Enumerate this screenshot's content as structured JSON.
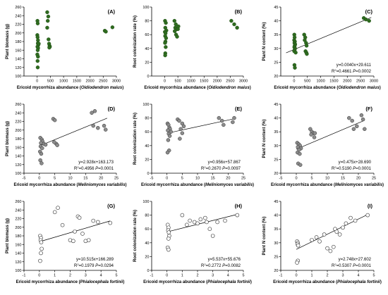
{
  "chart_data": [
    {
      "id": "A",
      "type": "scatter",
      "label": "(A)",
      "ylabel": "Plant biomass (g)",
      "xlabel_prefix": "Ericoid mycorrhiza abundance (",
      "xlabel_species": "Oidiodendron maius",
      "xlabel_suffix": ")",
      "xlim": [
        -500,
        3000
      ],
      "ylim": [
        100,
        260
      ],
      "xticks": [
        0,
        500,
        1000,
        1500,
        2000,
        2500,
        3000
      ],
      "yticks": [
        100,
        120,
        140,
        160,
        180,
        200,
        220,
        240,
        260
      ],
      "marker": "filled",
      "color": "#2e6b1f",
      "points": [
        [
          10,
          228
        ],
        [
          20,
          222
        ],
        [
          5,
          195
        ],
        [
          15,
          190
        ],
        [
          30,
          183
        ],
        [
          25,
          176
        ],
        [
          40,
          172
        ],
        [
          10,
          168
        ],
        [
          35,
          165
        ],
        [
          20,
          160
        ],
        [
          5,
          150
        ],
        [
          30,
          145
        ],
        [
          15,
          135
        ],
        [
          20,
          120
        ],
        [
          60,
          175
        ],
        [
          380,
          248
        ],
        [
          420,
          238
        ],
        [
          400,
          228
        ],
        [
          380,
          212
        ],
        [
          430,
          185
        ],
        [
          450,
          175
        ],
        [
          470,
          170
        ],
        [
          480,
          168
        ],
        [
          460,
          166
        ],
        [
          2560,
          205
        ],
        [
          2600,
          203
        ],
        [
          2850,
          213
        ]
      ],
      "fit": null,
      "equation": "",
      "r2": "",
      "pvalue": ""
    },
    {
      "id": "B",
      "type": "scatter",
      "label": "(B)",
      "ylabel": "Root colonization rate (%)",
      "xlabel_prefix": "Ericoid mycorrhiza abundance (",
      "xlabel_species": "Oidiodendron maius",
      "xlabel_suffix": ")",
      "xlim": [
        -500,
        3000
      ],
      "ylim": [
        0,
        100
      ],
      "xticks": [
        0,
        500,
        1000,
        1500,
        2000,
        2500,
        3000
      ],
      "yticks": [
        0,
        20,
        40,
        60,
        80,
        100
      ],
      "marker": "filled",
      "color": "#2e6b1f",
      "points": [
        [
          10,
          80
        ],
        [
          40,
          77
        ],
        [
          20,
          70
        ],
        [
          60,
          66
        ],
        [
          5,
          64
        ],
        [
          30,
          62
        ],
        [
          15,
          58
        ],
        [
          50,
          55
        ],
        [
          25,
          50
        ],
        [
          10,
          48
        ],
        [
          35,
          42
        ],
        [
          20,
          33
        ],
        [
          15,
          30
        ],
        [
          370,
          80
        ],
        [
          420,
          75
        ],
        [
          400,
          70
        ],
        [
          450,
          68
        ],
        [
          380,
          65
        ],
        [
          430,
          60
        ],
        [
          470,
          57
        ],
        [
          500,
          68
        ],
        [
          520,
          72
        ],
        [
          2540,
          80
        ],
        [
          2650,
          75
        ],
        [
          2760,
          70
        ]
      ],
      "fit": null,
      "equation": "",
      "r2": "",
      "pvalue": ""
    },
    {
      "id": "C",
      "type": "scatter",
      "label": "(C)",
      "ylabel": "Plant N content (%)",
      "xlabel_prefix": "Ericoid mycorrhiza abundance (",
      "xlabel_species": "Oidiodendron maius",
      "xlabel_suffix": ")",
      "xlim": [
        -500,
        3000
      ],
      "ylim": [
        20,
        45
      ],
      "xticks": [
        0,
        500,
        1000,
        1500,
        2000,
        2500,
        3000
      ],
      "yticks": [
        20,
        25,
        30,
        35,
        40,
        45
      ],
      "marker": "filled",
      "color": "#2e6b1f",
      "points": [
        [
          10,
          35
        ],
        [
          20,
          34
        ],
        [
          5,
          33
        ],
        [
          30,
          32.5
        ],
        [
          15,
          32
        ],
        [
          40,
          31.5
        ],
        [
          25,
          31
        ],
        [
          10,
          30.5
        ],
        [
          35,
          30
        ],
        [
          20,
          29.5
        ],
        [
          5,
          29
        ],
        [
          60,
          28.5
        ],
        [
          15,
          24
        ],
        [
          30,
          23
        ],
        [
          380,
          35
        ],
        [
          420,
          34
        ],
        [
          400,
          33
        ],
        [
          450,
          32
        ],
        [
          470,
          31
        ],
        [
          430,
          29
        ],
        [
          460,
          28.5
        ],
        [
          480,
          28
        ],
        [
          2620,
          41
        ],
        [
          2700,
          40.5
        ],
        [
          2820,
          40
        ]
      ],
      "fit": {
        "slope": 0.004,
        "intercept": 29.611,
        "x": [
          -300,
          2900
        ]
      },
      "equation": "y=0.0040x+29.611",
      "r2": "0.4661",
      "pvalue": "0.0002"
    },
    {
      "id": "D",
      "type": "scatter",
      "label": "(D)",
      "ylabel": "Plant biomass (g)",
      "xlabel_prefix": "Ericoid mycorrhiza abundance (",
      "xlabel_species": "Meliniomyces variabilis",
      "xlabel_suffix": ")",
      "xlim": [
        -5,
        25
      ],
      "ylim": [
        100,
        260
      ],
      "xticks": [
        -5,
        0,
        5,
        10,
        15,
        20,
        25
      ],
      "yticks": [
        100,
        120,
        140,
        160,
        180,
        200,
        220,
        240,
        260
      ],
      "marker": "gray",
      "color": "#8c8c8c",
      "points": [
        [
          0.3,
          182
        ],
        [
          0.8,
          178
        ],
        [
          1.0,
          174
        ],
        [
          0.5,
          170
        ],
        [
          1.5,
          168
        ],
        [
          2.0,
          166
        ],
        [
          0.4,
          162
        ],
        [
          0.9,
          158
        ],
        [
          0.2,
          150
        ],
        [
          0.6,
          145
        ],
        [
          0.3,
          130
        ],
        [
          0.7,
          123
        ],
        [
          4.5,
          226
        ],
        [
          5.0,
          223
        ],
        [
          5.5,
          168
        ],
        [
          5.8,
          165
        ],
        [
          4.8,
          172
        ],
        [
          17.0,
          240
        ],
        [
          18.0,
          244
        ],
        [
          17.5,
          210
        ],
        [
          19.0,
          205
        ],
        [
          21.0,
          210
        ],
        [
          21.5,
          201
        ]
      ],
      "fit": {
        "slope": 2.928,
        "intercept": 163.173,
        "x": [
          0,
          22
        ]
      },
      "equation": "y=2.928x+163.173",
      "r2": "0.4956",
      "pvalue": "0.0001"
    },
    {
      "id": "E",
      "type": "scatter",
      "label": "(E)",
      "ylabel": "Root colonization rate (%)",
      "xlabel_prefix": "Ericoid mycorrhiza abundance (",
      "xlabel_species": "Meliniomyces variabilis",
      "xlabel_suffix": ")",
      "xlim": [
        -5,
        25
      ],
      "ylim": [
        0,
        100
      ],
      "xticks": [
        -5,
        0,
        5,
        10,
        15,
        20,
        25
      ],
      "yticks": [
        0,
        20,
        40,
        60,
        80,
        100
      ],
      "marker": "gray",
      "color": "#8c8c8c",
      "points": [
        [
          0.2,
          72
        ],
        [
          0.5,
          70
        ],
        [
          0.8,
          66
        ],
        [
          1.0,
          64
        ],
        [
          0.3,
          62
        ],
        [
          1.3,
          60
        ],
        [
          0.6,
          57
        ],
        [
          0.9,
          54
        ],
        [
          0.4,
          48
        ],
        [
          0.7,
          33
        ],
        [
          0.2,
          30
        ],
        [
          3.5,
          78
        ],
        [
          4.0,
          76
        ],
        [
          5.0,
          72
        ],
        [
          5.5,
          68
        ],
        [
          4.5,
          64
        ],
        [
          5.0,
          58
        ],
        [
          4.2,
          50
        ],
        [
          17.0,
          80
        ],
        [
          18.0,
          76
        ],
        [
          18.5,
          70
        ],
        [
          21.5,
          74
        ],
        [
          22.0,
          80
        ]
      ],
      "fit": {
        "slope": 0.956,
        "intercept": 57.867,
        "x": [
          0,
          22
        ]
      },
      "equation": "y=0.956x+57.867",
      "r2": "0.2670",
      "pvalue": "0.0097"
    },
    {
      "id": "F",
      "type": "scatter",
      "label": "(F)",
      "ylabel": "Plant N content (%)",
      "xlabel_prefix": "Ericoid mycorrhiza abundance (",
      "xlabel_species": "Meliniomyces variabilis",
      "xlabel_suffix": ")",
      "xlim": [
        -5,
        25
      ],
      "ylim": [
        20,
        45
      ],
      "xticks": [
        -5,
        0,
        5,
        10,
        15,
        20,
        25
      ],
      "yticks": [
        20,
        25,
        30,
        35,
        40,
        45
      ],
      "marker": "gray",
      "color": "#8c8c8c",
      "points": [
        [
          0.3,
          31
        ],
        [
          0.8,
          30.5
        ],
        [
          1.2,
          30
        ],
        [
          0.5,
          29.5
        ],
        [
          1.5,
          29
        ],
        [
          0.9,
          28.5
        ],
        [
          0.4,
          27.5
        ],
        [
          1.1,
          27
        ],
        [
          0.6,
          23.5
        ],
        [
          1.3,
          23
        ],
        [
          4.5,
          36
        ],
        [
          5.0,
          35
        ],
        [
          5.5,
          34.5
        ],
        [
          4.8,
          34
        ],
        [
          5.8,
          33
        ],
        [
          6.0,
          34.5
        ],
        [
          17.0,
          40
        ],
        [
          18.0,
          39
        ],
        [
          18.5,
          36
        ],
        [
          19.5,
          37
        ],
        [
          21.0,
          41
        ],
        [
          21.5,
          39.5
        ],
        [
          22.0,
          36
        ]
      ],
      "fit": {
        "slope": 0.475,
        "intercept": 28.69,
        "x": [
          0,
          22
        ]
      },
      "equation": "y=0.475x+28.690",
      "r2": "0.5190",
      "pvalue": "0.0001"
    },
    {
      "id": "G",
      "type": "scatter",
      "label": "(G)",
      "ylabel": "Plant biomass (g)",
      "xlabel_prefix": "Ericoid mycorrhiza abundance (",
      "xlabel_species": "Phialocephala fortinii",
      "xlabel_suffix": ")",
      "xlim": [
        -1,
        5
      ],
      "ylim": [
        100,
        260
      ],
      "xticks": [
        -1,
        0,
        1,
        2,
        3,
        4,
        5
      ],
      "yticks": [
        100,
        120,
        140,
        160,
        180,
        200,
        220,
        240,
        260
      ],
      "marker": "open",
      "color": "#ffffff",
      "points": [
        [
          0.05,
          180
        ],
        [
          0.1,
          175
        ],
        [
          0.08,
          170
        ],
        [
          0.12,
          165
        ],
        [
          0.15,
          150
        ],
        [
          0.1,
          140
        ],
        [
          0.05,
          122
        ],
        [
          1.2,
          245
        ],
        [
          1.0,
          235
        ],
        [
          1.5,
          205
        ],
        [
          2.0,
          170
        ],
        [
          2.2,
          168
        ],
        [
          2.5,
          225
        ],
        [
          2.6,
          222
        ],
        [
          2.3,
          190
        ],
        [
          2.8,
          185
        ],
        [
          3.0,
          168
        ],
        [
          3.2,
          170
        ],
        [
          3.5,
          215
        ],
        [
          3.8,
          212
        ],
        [
          4.6,
          210
        ]
      ],
      "fit": {
        "slope": 10.515,
        "intercept": 166.289,
        "x": [
          0,
          4.6
        ]
      },
      "equation": "y=10.515x+166.289",
      "r2": "0.1979",
      "pvalue": "0.0294"
    },
    {
      "id": "H",
      "type": "scatter",
      "label": "(H)",
      "ylabel": "Root colonization rate (%)",
      "xlabel_prefix": "Ericoid mycorrhiza abundance (",
      "xlabel_species": "Phialocephala fortinii",
      "xlabel_suffix": ")",
      "xlim": [
        -1,
        5
      ],
      "ylim": [
        0,
        100
      ],
      "xticks": [
        -1,
        0,
        1,
        2,
        3,
        4,
        5
      ],
      "yticks": [
        0,
        20,
        40,
        60,
        80,
        100
      ],
      "marker": "open",
      "color": "#ffffff",
      "points": [
        [
          0.05,
          66
        ],
        [
          0.1,
          62
        ],
        [
          0.08,
          58
        ],
        [
          0.12,
          55
        ],
        [
          0.15,
          50
        ],
        [
          0.1,
          46
        ],
        [
          0.05,
          33
        ],
        [
          0.1,
          30
        ],
        [
          1.0,
          80
        ],
        [
          1.3,
          66
        ],
        [
          1.5,
          72
        ],
        [
          1.8,
          70
        ],
        [
          2.0,
          68
        ],
        [
          2.2,
          74
        ],
        [
          2.5,
          76
        ],
        [
          2.6,
          70
        ],
        [
          2.8,
          60
        ],
        [
          3.0,
          50
        ],
        [
          3.3,
          70
        ],
        [
          3.8,
          72
        ],
        [
          4.6,
          80
        ]
      ],
      "fit": {
        "slope": 5.537,
        "intercept": 55.676,
        "x": [
          0,
          4.6
        ]
      },
      "equation": "y=5.537x+55.676",
      "r2": "0.2772",
      "pvalue": "0.0082"
    },
    {
      "id": "I",
      "type": "scatter",
      "label": "(I)",
      "ylabel": "Plant N content (%)",
      "xlabel_prefix": "Ericoid mycorrhiza abundance (",
      "xlabel_species": "Phialocephala fortinii",
      "xlabel_suffix": ")",
      "xlim": [
        -1,
        5
      ],
      "ylim": [
        20,
        45
      ],
      "xticks": [
        -1,
        0,
        1,
        2,
        3,
        4,
        5
      ],
      "yticks": [
        20,
        25,
        30,
        35,
        40,
        45
      ],
      "marker": "open",
      "color": "#ffffff",
      "points": [
        [
          0.05,
          30.5
        ],
        [
          0.1,
          30
        ],
        [
          0.08,
          29.5
        ],
        [
          0.12,
          29
        ],
        [
          0.1,
          23.5
        ],
        [
          0.05,
          22.8
        ],
        [
          1.0,
          31
        ],
        [
          1.3,
          32
        ],
        [
          1.5,
          30.5
        ],
        [
          1.8,
          33
        ],
        [
          2.0,
          28
        ],
        [
          2.2,
          27
        ],
        [
          2.4,
          28.5
        ],
        [
          2.5,
          35
        ],
        [
          2.6,
          34
        ],
        [
          2.8,
          33
        ],
        [
          3.0,
          35.5
        ],
        [
          3.2,
          37
        ],
        [
          3.5,
          39
        ],
        [
          3.8,
          38
        ],
        [
          4.6,
          40
        ]
      ],
      "fit": {
        "slope": 2.748,
        "intercept": 27.602,
        "x": [
          0,
          4.6
        ]
      },
      "equation": "y=2.748x+27.602",
      "r2": "0.5307",
      "pvalue": "0.0001"
    }
  ]
}
